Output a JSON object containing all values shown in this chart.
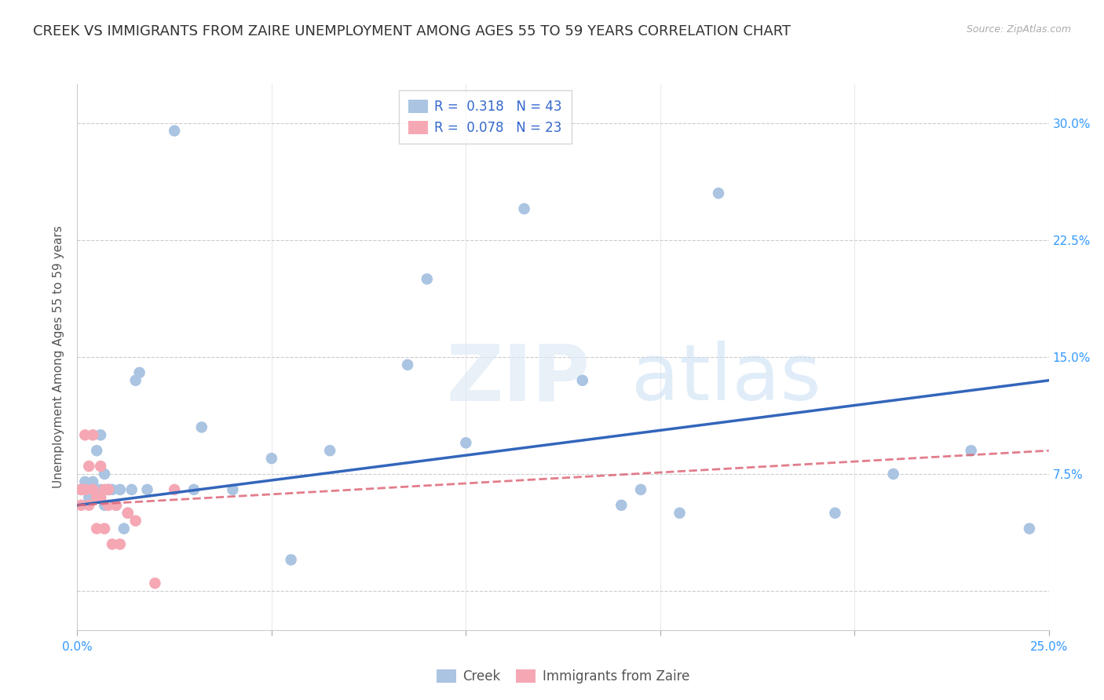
{
  "title": "CREEK VS IMMIGRANTS FROM ZAIRE UNEMPLOYMENT AMONG AGES 55 TO 59 YEARS CORRELATION CHART",
  "source": "Source: ZipAtlas.com",
  "ylabel": "Unemployment Among Ages 55 to 59 years",
  "xlim": [
    0.0,
    0.25
  ],
  "ylim": [
    -0.025,
    0.325
  ],
  "yticks": [
    0.0,
    0.075,
    0.15,
    0.225,
    0.3
  ],
  "ytick_labels": [
    "",
    "7.5%",
    "15.0%",
    "22.5%",
    "30.0%"
  ],
  "xticks": [
    0.0,
    0.05,
    0.1,
    0.15,
    0.2,
    0.25
  ],
  "xtick_labels": [
    "0.0%",
    "",
    "",
    "",
    "",
    "25.0%"
  ],
  "legend_creek_R": "0.318",
  "legend_creek_N": "43",
  "legend_zaire_R": "0.078",
  "legend_zaire_N": "23",
  "creek_color": "#aac4e2",
  "zaire_color": "#f5a8b4",
  "creek_line_color": "#3366bb",
  "zaire_line_color": "#dd6677",
  "background_color": "#ffffff",
  "grid_color": "#cccccc",
  "watermark_zip": "ZIP",
  "watermark_atlas": "atlas",
  "creek_x": [
    0.001,
    0.002,
    0.002,
    0.003,
    0.003,
    0.004,
    0.005,
    0.005,
    0.006,
    0.006,
    0.007,
    0.007,
    0.008,
    0.008,
    0.009,
    0.01,
    0.011,
    0.012,
    0.013,
    0.014,
    0.015,
    0.016,
    0.018,
    0.025,
    0.03,
    0.032,
    0.04,
    0.05,
    0.055,
    0.065,
    0.085,
    0.09,
    0.1,
    0.115,
    0.13,
    0.14,
    0.145,
    0.155,
    0.165,
    0.195,
    0.21,
    0.23,
    0.245
  ],
  "creek_y": [
    0.065,
    0.065,
    0.07,
    0.06,
    0.065,
    0.07,
    0.065,
    0.09,
    0.065,
    0.1,
    0.055,
    0.075,
    0.065,
    0.065,
    0.065,
    0.055,
    0.065,
    0.04,
    0.05,
    0.065,
    0.135,
    0.14,
    0.065,
    0.295,
    0.065,
    0.105,
    0.065,
    0.085,
    0.02,
    0.09,
    0.145,
    0.2,
    0.095,
    0.245,
    0.135,
    0.055,
    0.065,
    0.05,
    0.255,
    0.05,
    0.075,
    0.09,
    0.04
  ],
  "zaire_x": [
    0.001,
    0.001,
    0.002,
    0.002,
    0.003,
    0.003,
    0.004,
    0.004,
    0.005,
    0.005,
    0.006,
    0.006,
    0.007,
    0.007,
    0.008,
    0.008,
    0.009,
    0.01,
    0.011,
    0.013,
    0.015,
    0.02,
    0.025
  ],
  "zaire_y": [
    0.065,
    0.055,
    0.1,
    0.065,
    0.08,
    0.055,
    0.1,
    0.065,
    0.06,
    0.04,
    0.06,
    0.08,
    0.065,
    0.04,
    0.065,
    0.055,
    0.03,
    0.055,
    0.03,
    0.05,
    0.045,
    0.005,
    0.065
  ],
  "creek_trend_x": [
    0.0,
    0.25
  ],
  "creek_trend_y": [
    0.055,
    0.135
  ],
  "zaire_trend_x": [
    0.0,
    0.25
  ],
  "zaire_trend_y": [
    0.055,
    0.09
  ],
  "marker_size": 110,
  "title_fontsize": 13,
  "axis_label_color": "#3399ff",
  "tick_fontsize": 11,
  "ylabel_fontsize": 11
}
